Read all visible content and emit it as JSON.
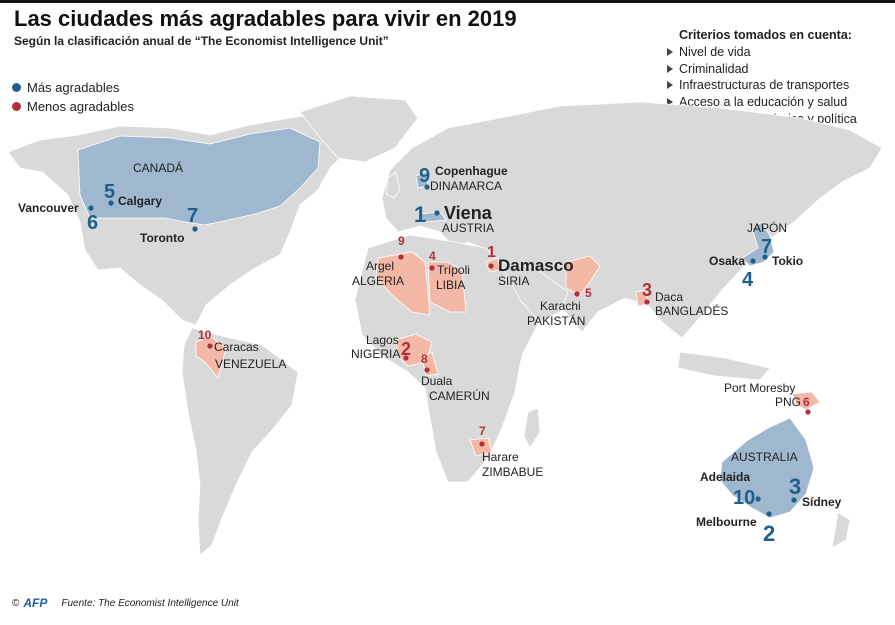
{
  "title": "Las ciudades más agradables para vivir en 2019",
  "subtitle": "Según la clasificación anual de “The Economist Intelligence Unit”",
  "legend": [
    {
      "label": "Más agradables",
      "color": "#1f5f8b"
    },
    {
      "label": "Menos agradables",
      "color": "#b0303a"
    }
  ],
  "criteria": {
    "title": "Criterios tomados en cuenta:",
    "items": [
      "Nivel de vida",
      "Criminalidad",
      "Infraestructuras de transportes",
      "Acceso a la educación y salud",
      "Estabilidad económica y política"
    ]
  },
  "colors": {
    "land": "#d9d9d9",
    "best_fill": "#9fb8cf",
    "worst_fill": "#f3b9a6",
    "best_text": "#1f5f8b",
    "worst_text": "#b0303a"
  },
  "countries": {
    "canada": "CANADÁ",
    "denmark": "DINAMARCA",
    "austria": "AUSTRIA",
    "japan": "JAPÓN",
    "australia": "AUSTRALIA",
    "algeria": "ALGERIA",
    "libya": "LIBIA",
    "syria": "SIRIA",
    "pakistan": "PAKISTÁN",
    "bangladesh": "BANGLADÉS",
    "nigeria": "NIGERIA",
    "cameroon": "CAMERÚN",
    "zimbabwe": "ZIMBABUE",
    "venezuela": "VENEZUELA",
    "png": "PNG"
  },
  "best_cities": [
    {
      "rank": "1",
      "city": "Viena"
    },
    {
      "rank": "2",
      "city": "Melbourne"
    },
    {
      "rank": "3",
      "city": "Sídney"
    },
    {
      "rank": "4",
      "city": "Osaka"
    },
    {
      "rank": "5",
      "city": "Calgary"
    },
    {
      "rank": "6",
      "city": "Vancouver"
    },
    {
      "rank": "7",
      "city": "Toronto"
    },
    {
      "rank": "7",
      "city": "Tokio"
    },
    {
      "rank": "9",
      "city": "Copenhague"
    },
    {
      "rank": "10",
      "city": "Adelaida"
    }
  ],
  "worst_cities": [
    {
      "rank": "1",
      "city": "Damasco"
    },
    {
      "rank": "2",
      "city": "Lagos"
    },
    {
      "rank": "3",
      "city": "Daca"
    },
    {
      "rank": "4",
      "city": "Trípoli"
    },
    {
      "rank": "5",
      "city": "Karachi"
    },
    {
      "rank": "6",
      "city": "Port Moresby"
    },
    {
      "rank": "7",
      "city": "Harare"
    },
    {
      "rank": "8",
      "city": "Duala"
    },
    {
      "rank": "9",
      "city": "Argel"
    },
    {
      "rank": "10",
      "city": "Caracas"
    }
  ],
  "footer": {
    "copyright": "©",
    "logo": "AFP",
    "source": "Fuente: The Economist Intelligence Unit"
  }
}
